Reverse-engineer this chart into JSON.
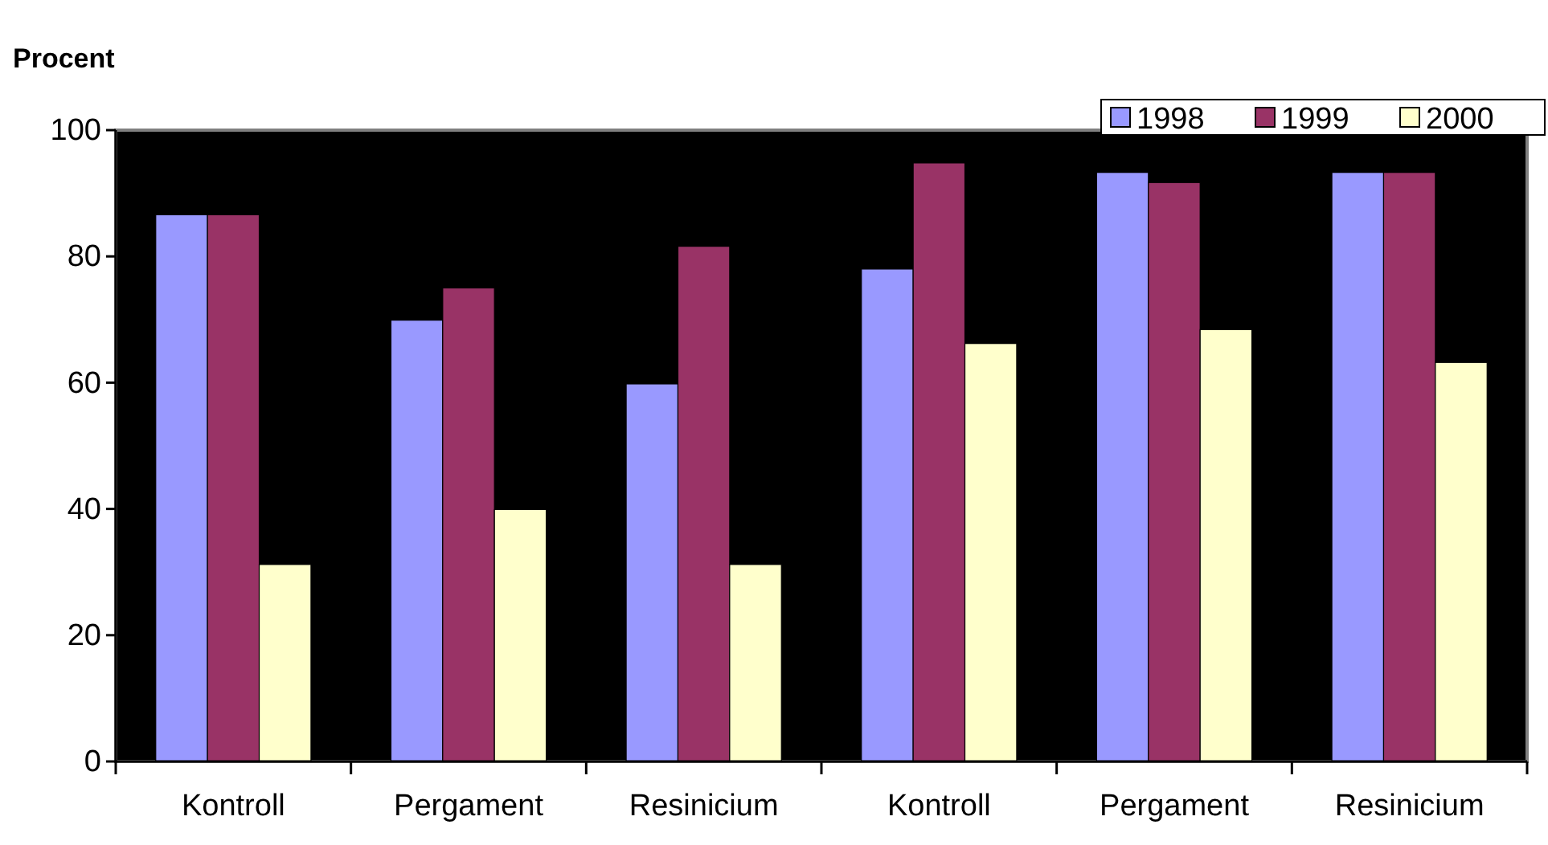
{
  "chart_data": {
    "type": "bar",
    "ylabel": "Procent",
    "categories": [
      "Kontroll",
      "Pergament",
      "Resinicium",
      "Kontroll",
      "Pergament",
      "Resinicium"
    ],
    "series": [
      {
        "name": "1998",
        "color": "#9999ff",
        "values": [
          86.6,
          69.9,
          59.8,
          78.0,
          93.3,
          93.3
        ]
      },
      {
        "name": "1999",
        "color": "#993366",
        "values": [
          86.6,
          75.0,
          81.6,
          94.8,
          91.7,
          93.3
        ]
      },
      {
        "name": "2000",
        "color": "#ffffcc",
        "values": [
          31.2,
          39.9,
          31.2,
          66.2,
          68.4,
          63.2
        ]
      }
    ],
    "ylim": [
      0,
      100
    ],
    "yticks": [
      0,
      20,
      40,
      60,
      80,
      100
    ],
    "grid": false,
    "legend": "top right"
  }
}
